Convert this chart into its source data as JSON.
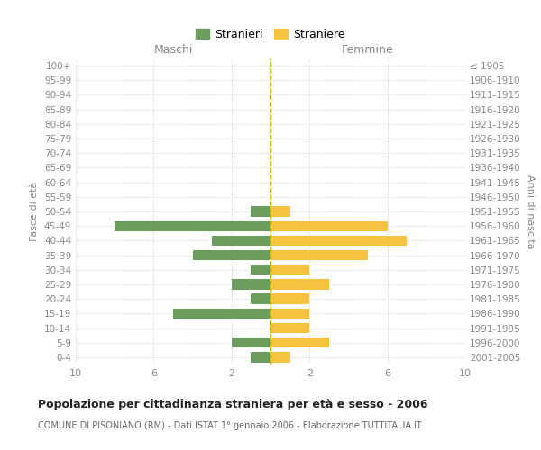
{
  "age_groups": [
    "100+",
    "95-99",
    "90-94",
    "85-89",
    "80-84",
    "75-79",
    "70-74",
    "65-69",
    "60-64",
    "55-59",
    "50-54",
    "45-49",
    "40-44",
    "35-39",
    "30-34",
    "25-29",
    "20-24",
    "15-19",
    "10-14",
    "5-9",
    "0-4"
  ],
  "birth_years": [
    "≤ 1905",
    "1906-1910",
    "1911-1915",
    "1916-1920",
    "1921-1925",
    "1926-1930",
    "1931-1935",
    "1936-1940",
    "1941-1945",
    "1946-1950",
    "1951-1955",
    "1956-1960",
    "1961-1965",
    "1966-1970",
    "1971-1975",
    "1976-1980",
    "1981-1985",
    "1986-1990",
    "1991-1995",
    "1996-2000",
    "2001-2005"
  ],
  "maschi": [
    0,
    0,
    0,
    0,
    0,
    0,
    0,
    0,
    0,
    0,
    1,
    8,
    3,
    4,
    1,
    2,
    1,
    5,
    0,
    2,
    1
  ],
  "femmine": [
    0,
    0,
    0,
    0,
    0,
    0,
    0,
    0,
    0,
    0,
    1,
    6,
    7,
    5,
    2,
    3,
    2,
    2,
    2,
    3,
    1
  ],
  "color_maschi": "#6b9e5e",
  "color_femmine": "#f5c242",
  "background_color": "#ffffff",
  "grid_color": "#cccccc",
  "center_line_color": "#b8b800",
  "title": "Popolazione per cittadinanza straniera per età e sesso - 2006",
  "subtitle": "COMUNE DI PISONIANO (RM) - Dati ISTAT 1° gennaio 2006 - Elaborazione TUTTITALIA.IT",
  "xlabel_left": "Maschi",
  "xlabel_right": "Femmine",
  "ylabel_left": "Fasce di età",
  "ylabel_right": "Anni di nascita",
  "legend_maschi": "Stranieri",
  "legend_femmine": "Straniere",
  "xlim": 10
}
